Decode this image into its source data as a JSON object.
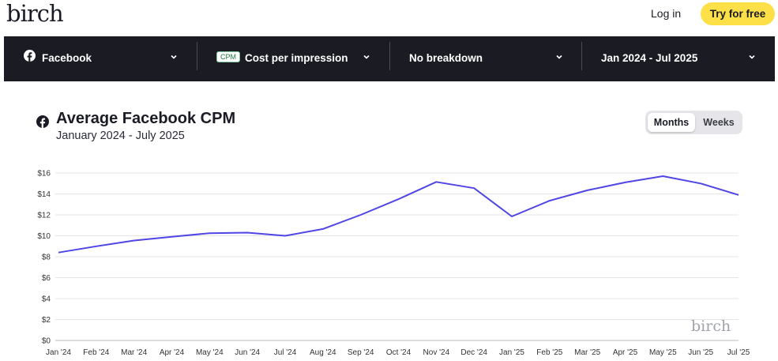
{
  "header": {
    "logo": "birch",
    "login_label": "Log in",
    "cta_label": "Try for free",
    "cta_color": "#fde047"
  },
  "filters": {
    "platform": {
      "label": "Facebook",
      "icon": "facebook-icon"
    },
    "metric": {
      "badge": "CPM",
      "label": "Cost per impression"
    },
    "breakdown": {
      "label": "No breakdown"
    },
    "date_range": {
      "label": "Jan 2024 - Jul 2025"
    }
  },
  "card": {
    "title": "Average Facebook CPM",
    "subtitle": "January 2024 - July 2025",
    "toggle": {
      "months_label": "Months",
      "weeks_label": "Weeks",
      "active": "Months"
    },
    "watermark": "birch"
  },
  "chart_data": {
    "type": "line",
    "title": "Average Facebook CPM",
    "subtitle": "January 2024 - July 2025",
    "categories": [
      "Jan '24",
      "Feb '24",
      "Mar '24",
      "Apr '24",
      "May '24",
      "Jun '24",
      "Jul '24",
      "Aug '24",
      "Sep '24",
      "Oct '24",
      "Nov '24",
      "Dec '24",
      "Jan '25",
      "Feb '25",
      "Mar '25",
      "Apr '25",
      "May '25",
      "Jun '25",
      "Jul '25"
    ],
    "series": [
      {
        "values": [
          8.4,
          9.0,
          9.55,
          9.9,
          10.25,
          10.3,
          10.0,
          10.65,
          12.0,
          13.5,
          15.15,
          14.55,
          11.85,
          13.35,
          14.35,
          15.1,
          15.7,
          15.0,
          13.9
        ],
        "color": "#4f46e5"
      }
    ],
    "y_ticks": [
      "$0",
      "$2",
      "$4",
      "$6",
      "$8",
      "$10",
      "$12",
      "$14",
      "$16"
    ],
    "ylim": [
      0,
      16
    ],
    "grid": true,
    "legend": "none"
  }
}
